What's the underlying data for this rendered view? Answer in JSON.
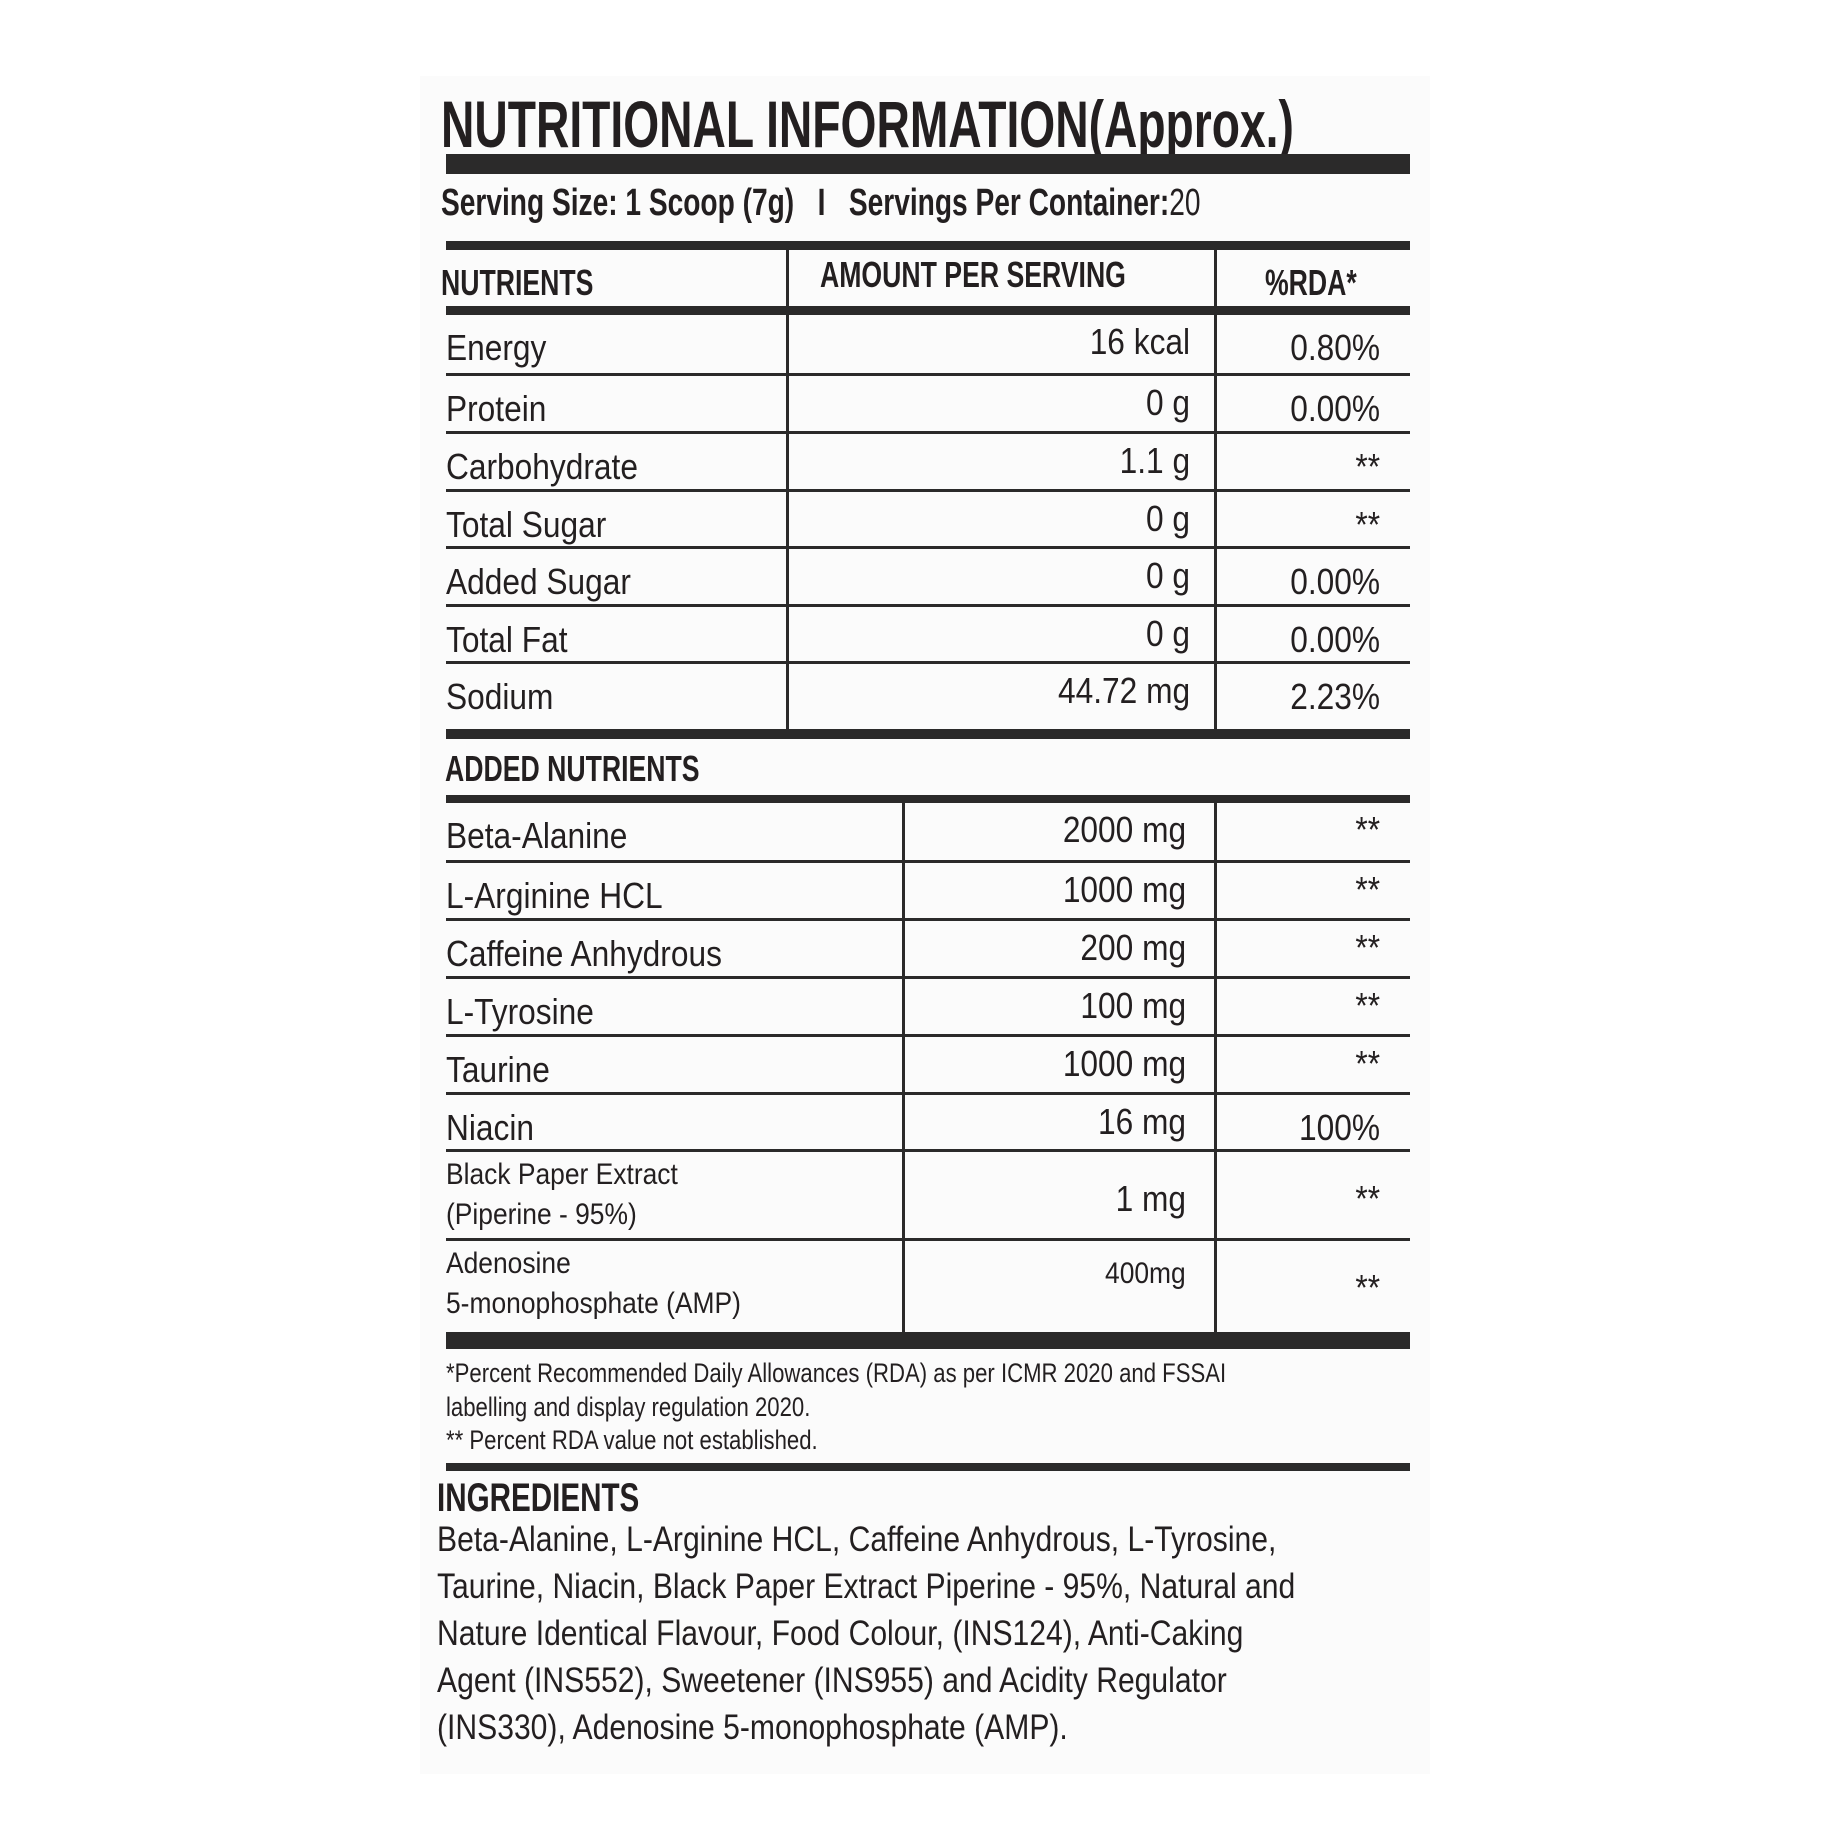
{
  "title": "NUTRITIONAL INFORMATION(Approx.)",
  "serving": {
    "size": "Serving Size: 1 Scoop (7g)",
    "separator": "I",
    "per_container": "Servings Per Container:",
    "per_container_value": "20"
  },
  "table": {
    "headers": [
      "NUTRIENTS",
      "AMOUNT PER SERVING",
      "%RDA*"
    ],
    "rows": [
      {
        "name": "Energy",
        "amount": "16 kcal",
        "rda": "0.80%"
      },
      {
        "name": "Protein",
        "amount": "0 g",
        "rda": "0.00%"
      },
      {
        "name": "Carbohydrate",
        "amount": "1.1 g",
        "rda": "**"
      },
      {
        "name": "Total Sugar",
        "amount": "0 g",
        "rda": "**"
      },
      {
        "name": "Added Sugar",
        "amount": "0 g",
        "rda": "0.00%"
      },
      {
        "name": "Total Fat",
        "amount": "0 g",
        "rda": "0.00%"
      },
      {
        "name": "Sodium",
        "amount": "44.72 mg",
        "rda": "2.23%"
      }
    ]
  },
  "added": {
    "heading": "ADDED NUTRIENTS",
    "rows": [
      {
        "name": "Beta-Alanine",
        "amount": "2000 mg",
        "rda": "**"
      },
      {
        "name": "L-Arginine HCL",
        "amount": "1000 mg",
        "rda": "**"
      },
      {
        "name": "Caffeine Anhydrous",
        "amount": "200 mg",
        "rda": "**"
      },
      {
        "name": "L-Tyrosine",
        "amount": "100 mg",
        "rda": "**"
      },
      {
        "name": "Taurine",
        "amount": "1000 mg",
        "rda": "**"
      },
      {
        "name": "Niacin",
        "amount": "16 mg",
        "rda": "100%"
      },
      {
        "name": "Black Paper Extract",
        "name2": "(Piperine - 95%)",
        "amount": "1 mg",
        "rda": "**"
      },
      {
        "name": "Adenosine",
        "name2": "5-monophosphate (AMP)",
        "amount": "400mg",
        "rda": "**"
      }
    ]
  },
  "footnotes": [
    "*Percent Recommended Daily Allowances (RDA) as per ICMR 2020 and FSSAI",
    "labelling and display regulation 2020.",
    "** Percent RDA value not established."
  ],
  "ingredients": {
    "heading": "INGREDIENTS",
    "lines": [
      "Beta-Alanine,  L-Arginine  HCL,  Caffeine  Anhydrous,  L-Tyrosine,",
      "Taurine,  Niacin,  Black Paper Extract  Piperine - 95%, Natural and",
      "Nature Identical Flavour, Food Colour, (INS124), Anti-Caking",
      "Agent (INS552), Sweetener (INS955) and Acidity Regulator",
      "(INS330), Adenosine 5-monophosphate (AMP)."
    ]
  }
}
